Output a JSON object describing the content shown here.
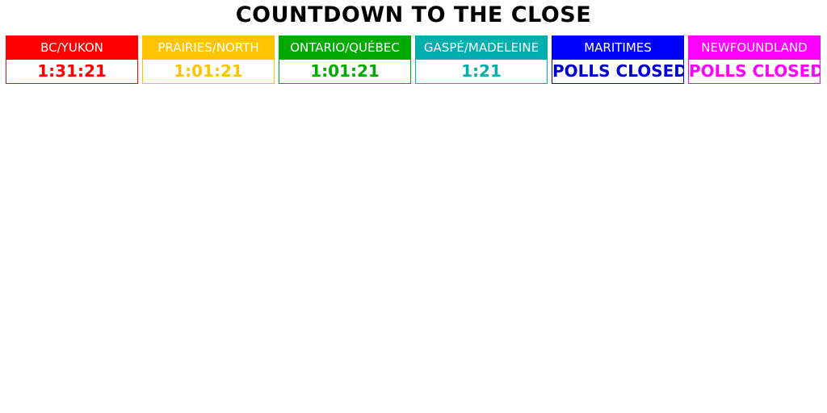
{
  "title": "COUNTDOWN TO THE CLOSE",
  "regions": [
    {
      "name": "BC/YUKON",
      "time": "1:31:21",
      "color": "#ff0000"
    },
    {
      "name": "PRAIRIES/NORTH",
      "time": "1:01:21",
      "color": "#ffc400"
    },
    {
      "name": "ONTARIO/QUÉBEC",
      "time": "1:01:21",
      "color": "#00aa00"
    },
    {
      "name": "GASPÉ/MADELEINE",
      "time": "1:21",
      "color": "#00aeae"
    },
    {
      "name": "MARITIMES",
      "time": "POLLS CLOSED",
      "color": "#0000ff",
      "time_color": "#0000cc"
    },
    {
      "name": "NEWFOUNDLAND",
      "time": "POLLS CLOSED",
      "color": "#ff00ff"
    }
  ]
}
